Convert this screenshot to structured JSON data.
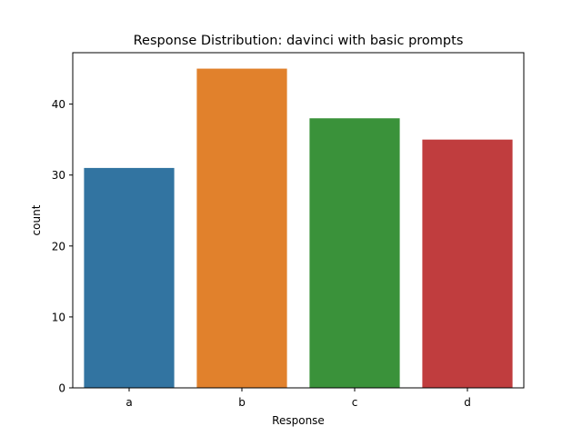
{
  "chart_data": {
    "type": "bar",
    "title": "Response Distribution: davinci with basic prompts",
    "xlabel": "Response",
    "ylabel": "count",
    "categories": [
      "a",
      "b",
      "c",
      "d"
    ],
    "values": [
      31,
      45,
      38,
      35
    ],
    "colors": [
      "#3274a1",
      "#e1812c",
      "#3a923a",
      "#c03d3e"
    ],
    "ylim": [
      0,
      47.25
    ],
    "yticks": [
      0,
      10,
      20,
      30,
      40
    ],
    "grid": false,
    "legend": "none"
  }
}
